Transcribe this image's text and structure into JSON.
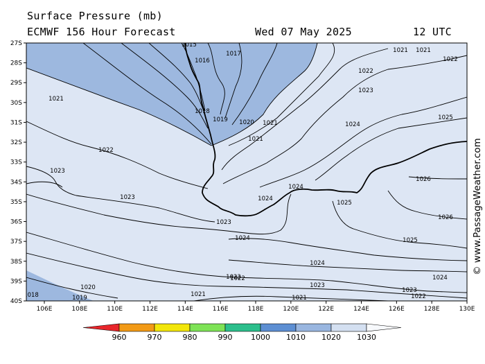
{
  "header": {
    "title": "Surface Pressure (mb)",
    "model": "ECMWF 156 Hour Forecast",
    "date": "Wed 07 May 2025",
    "time": "12 UTC"
  },
  "watermark": "© www.PassageWeather.com",
  "map": {
    "lat_labels": [
      "27S",
      "28S",
      "29S",
      "30S",
      "31S",
      "32S",
      "33S",
      "34S",
      "35S",
      "36S",
      "37S",
      "38S",
      "39S",
      "40S"
    ],
    "lon_labels": [
      "106E",
      "108E",
      "110E",
      "112E",
      "114E",
      "116E",
      "118E",
      "120E",
      "122E",
      "124E",
      "126E",
      "128E",
      "130E"
    ],
    "contour_labels": [
      {
        "t": "1015",
        "a": "1015"
      },
      {
        "t": "1016",
        "a": "1016"
      },
      {
        "t": "1017",
        "a": "1017"
      },
      {
        "t": "1018",
        "a": "1018"
      },
      {
        "t": "1019",
        "a": "1019"
      },
      {
        "t": "1020",
        "a": "1020"
      },
      {
        "t": "1021",
        "a": "1021"
      },
      {
        "t": "1021",
        "a": "1021b"
      },
      {
        "t": "1021",
        "a": "1021c"
      },
      {
        "t": "1021",
        "a": "1021d"
      },
      {
        "t": "1021",
        "a": "1021e"
      },
      {
        "t": "1021",
        "a": "1021f"
      },
      {
        "t": "1021",
        "a": "1021g"
      },
      {
        "t": "1022",
        "a": "1022"
      },
      {
        "t": "1022",
        "a": "1022b"
      },
      {
        "t": "1022",
        "a": "1022c"
      },
      {
        "t": "1022",
        "a": "1022d"
      },
      {
        "t": "1022",
        "a": "1022e"
      },
      {
        "t": "1023",
        "a": "1023"
      },
      {
        "t": "1023",
        "a": "1023b"
      },
      {
        "t": "1023",
        "a": "1023c"
      },
      {
        "t": "1023",
        "a": "1023d"
      },
      {
        "t": "1023",
        "a": "1023e"
      },
      {
        "t": "1023",
        "a": "1023f"
      },
      {
        "t": "1023",
        "a": "1023g"
      },
      {
        "t": "1024",
        "a": "1024"
      },
      {
        "t": "1024",
        "a": "1024b"
      },
      {
        "t": "1024",
        "a": "1024c"
      },
      {
        "t": "1024",
        "a": "1024d"
      },
      {
        "t": "1024",
        "a": "1024e"
      },
      {
        "t": "1024",
        "a": "1024f"
      },
      {
        "t": "1025",
        "a": "1025"
      },
      {
        "t": "1025",
        "a": "1025b"
      },
      {
        "t": "1025",
        "a": "1025c"
      },
      {
        "t": "1026",
        "a": "1026"
      },
      {
        "t": "1026",
        "a": "1026b"
      },
      {
        "t": "1020",
        "a": "1020b"
      },
      {
        "t": "1019",
        "a": "1019b"
      },
      {
        "t": "1018",
        "a": "1018b"
      }
    ]
  },
  "legend": {
    "labels": [
      "960",
      "970",
      "980",
      "990",
      "1000",
      "1010",
      "1020",
      "1030"
    ],
    "colors": [
      "#e8262b",
      "#f29a16",
      "#f2e60a",
      "#7ee356",
      "#2cbf8c",
      "#5d8fd3",
      "#99b6e0",
      "#d4e0f1",
      "#f7f9fc"
    ]
  },
  "colors": {
    "low_fill": "#9db8df",
    "high_fill": "#dde6f4",
    "contour": "#000000",
    "coast": "#000000"
  }
}
